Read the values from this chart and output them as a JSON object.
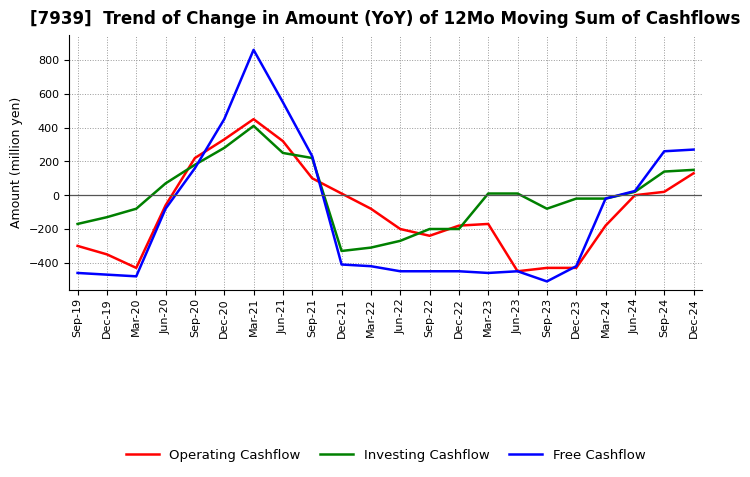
{
  "title": "[7939]  Trend of Change in Amount (YoY) of 12Mo Moving Sum of Cashflows",
  "ylabel": "Amount (million yen)",
  "x_labels": [
    "Sep-19",
    "Dec-19",
    "Mar-20",
    "Jun-20",
    "Sep-20",
    "Dec-20",
    "Mar-21",
    "Jun-21",
    "Sep-21",
    "Dec-21",
    "Mar-22",
    "Jun-22",
    "Sep-22",
    "Dec-22",
    "Mar-23",
    "Jun-23",
    "Sep-23",
    "Dec-23",
    "Mar-24",
    "Jun-24",
    "Sep-24",
    "Dec-24"
  ],
  "operating": [
    -300,
    -350,
    -430,
    -60,
    220,
    330,
    450,
    320,
    100,
    10,
    -80,
    -200,
    -240,
    -180,
    -170,
    -450,
    -430,
    -430,
    -180,
    0,
    20,
    130
  ],
  "investing": [
    -170,
    -130,
    -80,
    70,
    180,
    280,
    410,
    250,
    220,
    -330,
    -310,
    -270,
    -200,
    -200,
    10,
    10,
    -80,
    -20,
    -20,
    20,
    140,
    150
  ],
  "free": [
    -460,
    -470,
    -480,
    -80,
    160,
    450,
    860,
    550,
    230,
    -410,
    -420,
    -450,
    -450,
    -450,
    -460,
    -450,
    -510,
    -420,
    -20,
    25,
    260,
    270
  ],
  "ylim": [
    -560,
    950
  ],
  "yticks": [
    -400,
    -200,
    0,
    200,
    400,
    600,
    800
  ],
  "operating_color": "#ff0000",
  "investing_color": "#008000",
  "free_color": "#0000ff",
  "background_color": "#ffffff",
  "grid_color": "#999999",
  "title_fontsize": 12,
  "axis_label_fontsize": 9,
  "tick_fontsize": 8,
  "legend_fontsize": 9.5,
  "linewidth": 1.8
}
